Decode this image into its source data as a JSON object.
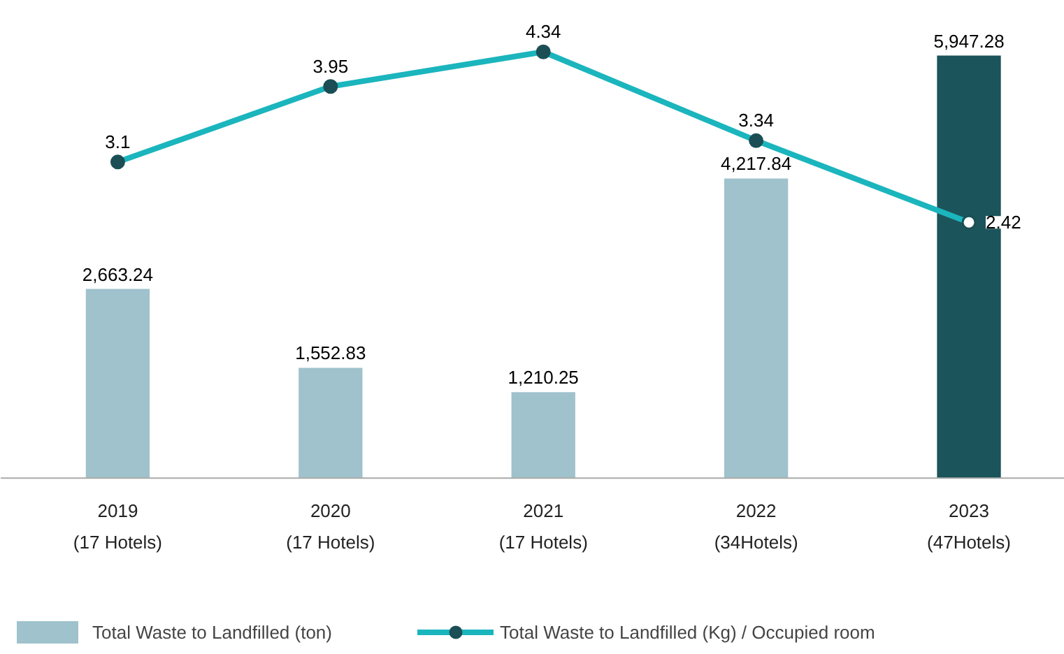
{
  "chart_data": {
    "type": "bar",
    "categories": [
      "2019\n(17 Hotels)",
      "2020\n(17 Hotels)",
      "2021\n(17 Hotels)",
      "2022\n(34Hotels)",
      "2023\n(47Hotels)"
    ],
    "series": [
      {
        "name": "Total Waste to Landfilled (ton)",
        "color": "#9fc2cc",
        "colors": [
          null,
          null,
          null,
          null,
          "#1b545a"
        ],
        "values": [
          2663.24,
          1552.83,
          1210.25,
          4217.84,
          5947.28
        ],
        "value_labels": [
          "2,663.24",
          "1,552.83",
          "1,210.25",
          "4,217.84",
          "5,947.28"
        ]
      },
      {
        "name": "Total Waste to Landfilled (Kg) / Occupied room",
        "type": "line",
        "axis": "y2",
        "color": "#1bb5bd",
        "values": [
          3.1,
          3.95,
          4.34,
          3.34,
          2.42
        ],
        "value_labels": [
          "3.1",
          "3.95",
          "4.34",
          "3.34",
          "2.42"
        ]
      }
    ],
    "tick_labels": "x",
    "grid": false,
    "legend": "bottom",
    "marker": "circle",
    "line_style": "solid"
  }
}
